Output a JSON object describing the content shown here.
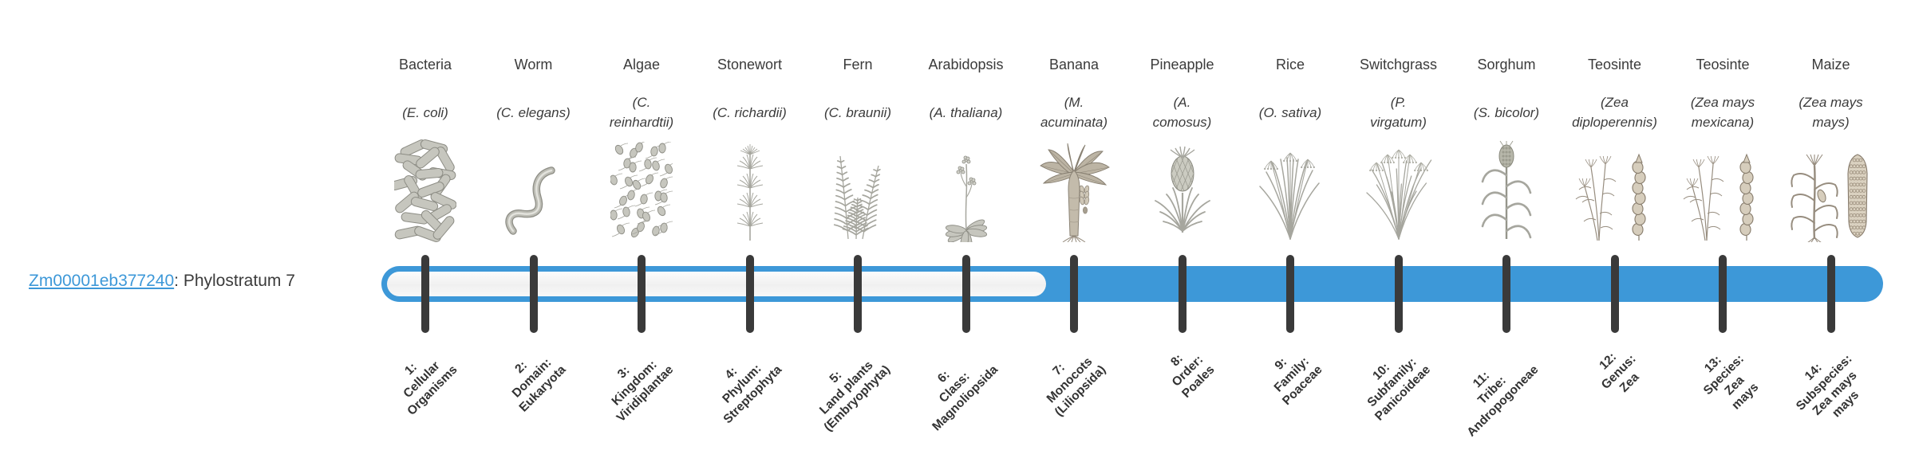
{
  "gene": {
    "id": "Zm00001eb377240",
    "suffix": ": Phylostratum 7",
    "phylostratum": 7
  },
  "timeline": {
    "bar_color": "#3d98d8",
    "unfilled_color": "#f5f5f5",
    "tick_color": "#3a3a3a",
    "link_color": "#3d98d8",
    "filled_from_stratum": 7,
    "num_strata": 14
  },
  "strata": [
    {
      "index": 1,
      "common": "Bacteria",
      "scientific": "(E. coli)",
      "illustration": "bacteria",
      "rank": "1:\nCellular\nOrganisms",
      "in_gene_range": false
    },
    {
      "index": 2,
      "common": "Worm",
      "scientific": "(C. elegans)",
      "illustration": "worm",
      "rank": "2:\nDomain:\nEukaryota",
      "in_gene_range": false
    },
    {
      "index": 3,
      "common": "Algae",
      "scientific": "(C.\nreinhardtii)",
      "illustration": "algae",
      "rank": "3:\nKingdom:\nViridiplantae",
      "in_gene_range": false
    },
    {
      "index": 4,
      "common": "Stonewort",
      "scientific": "(C. richardii)",
      "illustration": "stonewort",
      "rank": "4:\nPhylum:\nStreptophyta",
      "in_gene_range": false
    },
    {
      "index": 5,
      "common": "Fern",
      "scientific": "(C. braunii)",
      "illustration": "fern",
      "rank": "5:\nLand plants\n(Embryophyta)",
      "in_gene_range": false
    },
    {
      "index": 6,
      "common": "Arabidopsis",
      "scientific": "(A. thaliana)",
      "illustration": "arabidopsis",
      "rank": "6:\nClass:\nMagnoliopsida",
      "in_gene_range": false
    },
    {
      "index": 7,
      "common": "Banana",
      "scientific": "(M.\nacuminata)",
      "illustration": "banana",
      "rank": "7:\nMonocots\n(Liliopsida)",
      "in_gene_range": true
    },
    {
      "index": 8,
      "common": "Pineapple",
      "scientific": "(A.\ncomosus)",
      "illustration": "pineapple",
      "rank": "8:\nOrder:\nPoales",
      "in_gene_range": true
    },
    {
      "index": 9,
      "common": "Rice",
      "scientific": "(O. sativa)",
      "illustration": "rice",
      "rank": "9:\nFamily:\nPoaceae",
      "in_gene_range": true
    },
    {
      "index": 10,
      "common": "Switchgrass",
      "scientific": "(P.\nvirgatum)",
      "illustration": "switchgrass",
      "rank": "10:\nSubfamily:\nPanicoideae",
      "in_gene_range": true
    },
    {
      "index": 11,
      "common": "Sorghum",
      "scientific": "(S. bicolor)",
      "illustration": "sorghum",
      "rank": "11:\nTribe:\nAndropogoneae",
      "in_gene_range": true
    },
    {
      "index": 12,
      "common": "Teosinte",
      "scientific": "(Zea\ndiploperennis)",
      "illustration": "teosinte",
      "rank": "12:\nGenus:\nZea",
      "in_gene_range": true
    },
    {
      "index": 13,
      "common": "Teosinte",
      "scientific": "(Zea mays\nmexicana)",
      "illustration": "teosinte",
      "rank": "13:\nSpecies:\nZea\nmays",
      "in_gene_range": true
    },
    {
      "index": 14,
      "common": "Maize",
      "scientific": "(Zea mays\nmays)",
      "illustration": "maize",
      "rank": "14:\nSubspecies:\nZea mays\nmays",
      "in_gene_range": true
    }
  ]
}
